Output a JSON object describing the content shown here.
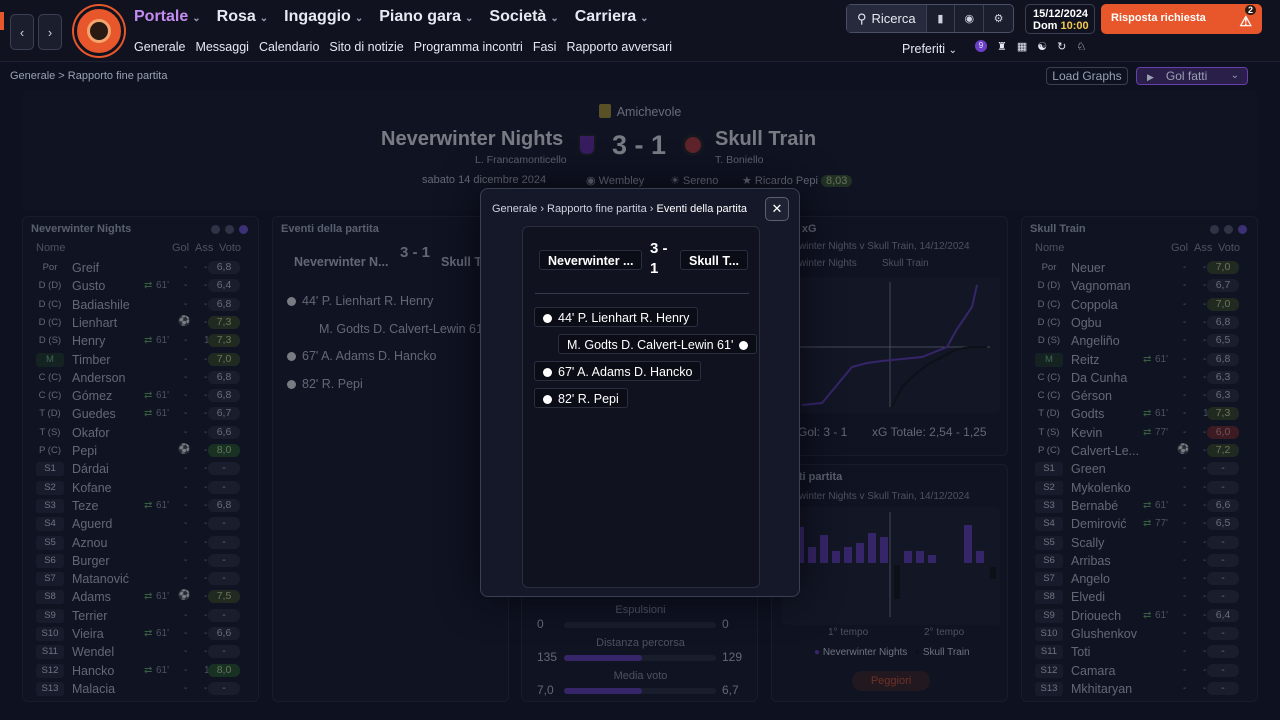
{
  "nav": {
    "main": [
      {
        "label": "Portale",
        "active": true
      },
      {
        "label": "Rosa"
      },
      {
        "label": "Ingaggio"
      },
      {
        "label": "Piano gara"
      },
      {
        "label": "Società"
      },
      {
        "label": "Carriera"
      }
    ],
    "sub": [
      "Generale",
      "Messaggi",
      "Calendario",
      "Sito di notizie",
      "Programma incontri",
      "Fasi",
      "Rapporto avversari"
    ]
  },
  "search": {
    "label": "Ricerca"
  },
  "date": {
    "day": "15/12/2024",
    "weekday": "Dom",
    "time": "10:00"
  },
  "alert": {
    "label": "Risposta richiesta",
    "count": "2"
  },
  "prefs": {
    "label": "Preferiti",
    "badge": "9"
  },
  "breadcrumb": "Generale > Rapporto fine partita",
  "buttons": {
    "load_graphs": "Load Graphs",
    "gol_fatti": "Gol fatti"
  },
  "match": {
    "competition": "Amichevole",
    "home": "Neverwinter Nights",
    "away": "Skull Train",
    "home_mgr": "L. Francamonticello",
    "away_mgr": "T. Boniello",
    "score": "3 - 1",
    "date": "sabato 14 dicembre 2024",
    "venue": "Wembley",
    "weather": "Sereno",
    "pom": "Ricardo Pepi",
    "pom_rating": "8,03"
  },
  "home_panel": {
    "title": "Neverwinter Nights",
    "cols": [
      "Nome",
      "Gol",
      "Ass",
      "Voto"
    ],
    "players": [
      {
        "pos": "Por",
        "name": "Greif",
        "gol": "-",
        "ass": "-",
        "vt": "6,8"
      },
      {
        "pos": "D (D)",
        "name": "Gusto",
        "sub": "61'",
        "gol": "-",
        "ass": "-",
        "vt": "6,4"
      },
      {
        "pos": "D (C)",
        "name": "Badiashile",
        "gol": "-",
        "ass": "-",
        "vt": "6,8"
      },
      {
        "pos": "D (C)",
        "name": "Lienhart",
        "goal": true,
        "ass": "-",
        "vt": "7,3",
        "c": "g1"
      },
      {
        "pos": "D (S)",
        "name": "Henry",
        "sub": "61'",
        "gol": "-",
        "ass": "1",
        "vt": "7,3",
        "c": "g1"
      },
      {
        "pos": "M",
        "name": "Timber",
        "gol": "-",
        "ass": "-",
        "vt": "7,0",
        "c": "g1",
        "mid": true
      },
      {
        "pos": "C (C)",
        "name": "Anderson",
        "gol": "-",
        "ass": "-",
        "vt": "6,8"
      },
      {
        "pos": "C (C)",
        "name": "Gómez",
        "sub": "61'",
        "gol": "-",
        "ass": "-",
        "vt": "6,8"
      },
      {
        "pos": "T (D)",
        "name": "Guedes",
        "sub": "61'",
        "gol": "-",
        "ass": "-",
        "vt": "6,7"
      },
      {
        "pos": "T (S)",
        "name": "Okafor",
        "gol": "-",
        "ass": "-",
        "vt": "6,6"
      },
      {
        "pos": "P (C)",
        "name": "Pepi",
        "goal": true,
        "ass": "-",
        "vt": "8,0",
        "c": "g2"
      },
      {
        "pos": "S1",
        "name": "Dárdai",
        "gol": "-",
        "ass": "-",
        "vt": "-",
        "s": true
      },
      {
        "pos": "S2",
        "name": "Kofane",
        "gol": "-",
        "ass": "-",
        "vt": "-",
        "s": true
      },
      {
        "pos": "S3",
        "name": "Teze",
        "sub": "61'",
        "gol": "-",
        "ass": "-",
        "vt": "6,8",
        "s": true
      },
      {
        "pos": "S4",
        "name": "Aguerd",
        "gol": "-",
        "ass": "-",
        "vt": "-",
        "s": true
      },
      {
        "pos": "S5",
        "name": "Aznou",
        "gol": "-",
        "ass": "-",
        "vt": "-",
        "s": true
      },
      {
        "pos": "S6",
        "name": "Burger",
        "gol": "-",
        "ass": "-",
        "vt": "-",
        "s": true
      },
      {
        "pos": "S7",
        "name": "Matanović",
        "gol": "-",
        "ass": "-",
        "vt": "-",
        "s": true
      },
      {
        "pos": "S8",
        "name": "Adams",
        "sub": "61'",
        "goal": true,
        "ass": "-",
        "vt": "7,5",
        "c": "g1",
        "s": true
      },
      {
        "pos": "S9",
        "name": "Terrier",
        "gol": "-",
        "ass": "-",
        "vt": "-",
        "s": true
      },
      {
        "pos": "S10",
        "name": "Vieira",
        "sub": "61'",
        "gol": "-",
        "ass": "-",
        "vt": "6,6",
        "s": true
      },
      {
        "pos": "S11",
        "name": "Wendel",
        "gol": "-",
        "ass": "-",
        "vt": "-",
        "s": true
      },
      {
        "pos": "S12",
        "name": "Hancko",
        "sub": "61'",
        "gol": "-",
        "ass": "1",
        "vt": "8,0",
        "c": "g2",
        "s": true
      },
      {
        "pos": "S13",
        "name": "Malacia",
        "gol": "-",
        "ass": "-",
        "vt": "-",
        "s": true
      }
    ]
  },
  "away_panel": {
    "title": "Skull Train",
    "cols": [
      "Nome",
      "Gol",
      "Ass",
      "Voto"
    ],
    "players": [
      {
        "pos": "Por",
        "name": "Neuer",
        "gol": "-",
        "ass": "-",
        "vt": "7,0",
        "c": "g1"
      },
      {
        "pos": "D (D)",
        "name": "Vagnoman",
        "gol": "-",
        "ass": "-",
        "vt": "6,7"
      },
      {
        "pos": "D (C)",
        "name": "Coppola",
        "gol": "-",
        "ass": "-",
        "vt": "7,0",
        "c": "g1"
      },
      {
        "pos": "D (C)",
        "name": "Ogbu",
        "gol": "-",
        "ass": "-",
        "vt": "6,8"
      },
      {
        "pos": "D (S)",
        "name": "Angeliño",
        "gol": "-",
        "ass": "-",
        "vt": "6,5"
      },
      {
        "pos": "M",
        "name": "Reitz",
        "sub": "61'",
        "gol": "-",
        "ass": "-",
        "vt": "6,8",
        "mid": true
      },
      {
        "pos": "C (C)",
        "name": "Da Cunha",
        "gol": "-",
        "ass": "-",
        "vt": "6,3"
      },
      {
        "pos": "C (C)",
        "name": "Gérson",
        "gol": "-",
        "ass": "-",
        "vt": "6,3"
      },
      {
        "pos": "T (D)",
        "name": "Godts",
        "sub": "61'",
        "gol": "-",
        "ass": "1",
        "vt": "7,3",
        "c": "g1"
      },
      {
        "pos": "T (S)",
        "name": "Kevin",
        "sub": "77'",
        "gol": "-",
        "ass": "-",
        "vt": "6,0",
        "c": "r"
      },
      {
        "pos": "P (C)",
        "name": "Calvert-Le...",
        "goal": true,
        "ass": "-",
        "vt": "7,2",
        "c": "g1"
      },
      {
        "pos": "S1",
        "name": "Green",
        "gol": "-",
        "ass": "-",
        "vt": "-",
        "s": true
      },
      {
        "pos": "S2",
        "name": "Mykolenko",
        "gol": "-",
        "ass": "-",
        "vt": "-",
        "s": true
      },
      {
        "pos": "S3",
        "name": "Bernabé",
        "sub": "61'",
        "gol": "-",
        "ass": "-",
        "vt": "6,6",
        "s": true
      },
      {
        "pos": "S4",
        "name": "Demirović",
        "sub": "77'",
        "gol": "-",
        "ass": "-",
        "vt": "6,5",
        "s": true
      },
      {
        "pos": "S5",
        "name": "Scally",
        "gol": "-",
        "ass": "-",
        "vt": "-",
        "s": true
      },
      {
        "pos": "S6",
        "name": "Arribas",
        "gol": "-",
        "ass": "-",
        "vt": "-",
        "s": true
      },
      {
        "pos": "S7",
        "name": "Angelo",
        "gol": "-",
        "ass": "-",
        "vt": "-",
        "s": true
      },
      {
        "pos": "S8",
        "name": "Elvedi",
        "gol": "-",
        "ass": "-",
        "vt": "-",
        "s": true
      },
      {
        "pos": "S9",
        "name": "Driouech",
        "sub": "61'",
        "gol": "-",
        "ass": "-",
        "vt": "6,4",
        "s": true
      },
      {
        "pos": "S10",
        "name": "Glushenkov",
        "gol": "-",
        "ass": "-",
        "vt": "-",
        "s": true
      },
      {
        "pos": "S11",
        "name": "Toti",
        "gol": "-",
        "ass": "-",
        "vt": "-",
        "s": true
      },
      {
        "pos": "S12",
        "name": "Camara",
        "gol": "-",
        "ass": "-",
        "vt": "-",
        "s": true
      },
      {
        "pos": "S13",
        "name": "Mkhitaryan",
        "gol": "-",
        "ass": "-",
        "vt": "-",
        "s": true
      }
    ]
  },
  "events_panel": {
    "title": "Eventi della partita",
    "home": "Neverwinter N...",
    "score": "3 - 1",
    "away": "Skull T...",
    "events": [
      "44' P. Lienhart R. Henry",
      "M. Godts D. Calvert-Lewin 61'",
      "67' A. Adams D. Hancko",
      "82' R. Pepi"
    ]
  },
  "xg_panel": {
    "title": "co xG",
    "sub": "erwinter Nights v Skull Train, 14/12/2024",
    "legend_home": "erwinter Nights",
    "legend_away": "Skull Train",
    "footer_goals": "Gol: 3 - 1",
    "footer_xg": "xG Totale: 2,54 - 1,25"
  },
  "timeline_panel": {
    "title": "enti partita",
    "sub": "erwinter Nights v Skull Train, 14/12/2024",
    "t1": "1° tempo",
    "t2": "2° tempo",
    "legend_home": "Neverwinter Nights",
    "legend_away": "Skull Train",
    "button": "Peggiori"
  },
  "stats": [
    {
      "label": "Espulsioni",
      "home": "0",
      "away": "0",
      "hf": 0
    },
    {
      "label": "Distanza percorsa",
      "home": "135",
      "away": "129",
      "hf": 0.51
    },
    {
      "label": "Media voto",
      "home": "7,0",
      "away": "6,7",
      "hf": 0.51
    }
  ],
  "modal": {
    "bread1": "Generale",
    "bread2": "Rapporto fine partita",
    "bread3": "Eventi della partita",
    "home": "Neverwinter ...",
    "score": "3 -\n1",
    "away": "Skull T...",
    "events": [
      {
        "text": "44' P. Lienhart R. Henry",
        "side": "home"
      },
      {
        "text": "M. Godts D. Calvert-Lewin 61'",
        "side": "away"
      },
      {
        "text": "67' A. Adams D. Hancko",
        "side": "home"
      },
      {
        "text": "82' R. Pepi",
        "side": "home"
      }
    ]
  },
  "colors": {
    "accent": "#c48cf0",
    "brand": "#e8572b",
    "home": "#6b3fc8"
  }
}
